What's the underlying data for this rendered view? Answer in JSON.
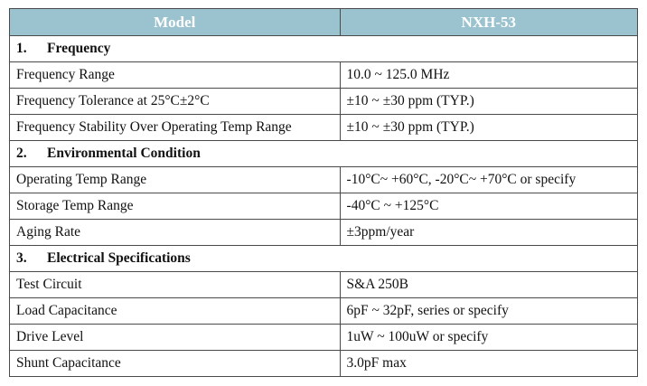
{
  "header": {
    "col1": "Model",
    "col2": "NXH-53"
  },
  "sections": [
    {
      "number": "1.",
      "title": "Frequency",
      "rows": [
        {
          "param": "Frequency Range",
          "value": "10.0 ~ 125.0 MHz"
        },
        {
          "param": "Frequency Tolerance at 25°C±2°C",
          "value": "±10 ~ ±30 ppm (TYP.)"
        },
        {
          "param": "Frequency Stability Over Operating Temp Range",
          "value": "±10 ~ ±30 ppm (TYP.)"
        }
      ]
    },
    {
      "number": "2.",
      "title": "Environmental Condition",
      "rows": [
        {
          "param": "Operating Temp Range",
          "value": "-10°C~ +60°C, -20°C~ +70°C or specify"
        },
        {
          "param": "Storage Temp Range",
          "value": "-40°C ~ +125°C"
        },
        {
          "param": "Aging Rate",
          "value": "±3ppm/year"
        }
      ]
    },
    {
      "number": "3.",
      "title": "Electrical Specifications",
      "rows": [
        {
          "param": "Test Circuit",
          "value": "S&A 250B"
        },
        {
          "param": "Load Capacitance",
          "value": "6pF ~ 32pF, series or specify"
        },
        {
          "param": "Drive Level",
          "value": "1uW ~ 100uW or specify"
        },
        {
          "param": "Shunt Capacitance",
          "value": "3.0pF max"
        }
      ]
    }
  ],
  "colors": {
    "header_bg": "#9bc2cf",
    "header_text": "#ffffff",
    "border": "#4a4a4a"
  }
}
